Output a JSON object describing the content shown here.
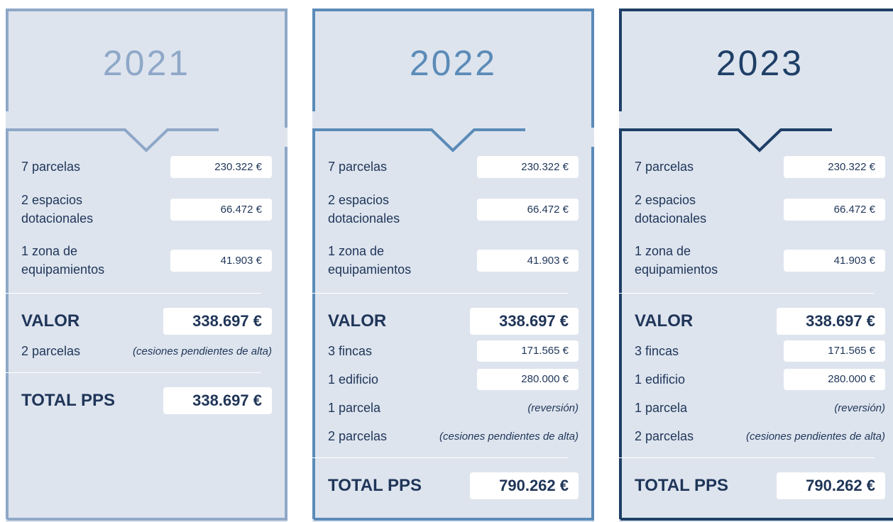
{
  "panels": [
    {
      "year": "2021",
      "color": "#8fa8c8",
      "items": [
        {
          "label": "7 parcelas",
          "value": "230.322 €"
        },
        {
          "label": [
            "2 espacios",
            "dotacionales"
          ],
          "value": "66.472 €"
        },
        {
          "label": [
            "1 zona de",
            "equipamientos"
          ],
          "value": "41.903 €"
        }
      ],
      "valor": {
        "label": "VALOR",
        "value": "338.697 €"
      },
      "extras": [
        {
          "label": "2 parcelas",
          "note": "(cesiones pendientes de alta)"
        }
      ],
      "total": {
        "label": "TOTAL PPS",
        "value": "338.697 €"
      }
    },
    {
      "year": "2022",
      "color": "#5b8bb8",
      "items": [
        {
          "label": "7 parcelas",
          "value": "230.322 €"
        },
        {
          "label": [
            "2 espacios",
            "dotacionales"
          ],
          "value": "66.472 €"
        },
        {
          "label": [
            "1 zona de",
            "equipamientos"
          ],
          "value": "41.903 €"
        }
      ],
      "valor": {
        "label": "VALOR",
        "value": "338.697 €"
      },
      "extras": [
        {
          "label": "3 fincas",
          "value": "171.565 €"
        },
        {
          "label": "1 edificio",
          "value": "280.000 €"
        },
        {
          "label": "1 parcela",
          "note": "(reversión)"
        },
        {
          "label": "2 parcelas",
          "note": "(cesiones pendientes de alta)"
        }
      ],
      "total": {
        "label": "TOTAL PPS",
        "value": "790.262 €"
      }
    },
    {
      "year": "2023",
      "color": "#1f3f66",
      "items": [
        {
          "label": "7 parcelas",
          "value": "230.322 €"
        },
        {
          "label": [
            "2 espacios",
            "dotacionales"
          ],
          "value": "66.472 €"
        },
        {
          "label": [
            "1 zona de",
            "equipamientos"
          ],
          "value": "41.903 €"
        }
      ],
      "valor": {
        "label": "VALOR",
        "value": "338.697 €"
      },
      "extras": [
        {
          "label": "3 fincas",
          "value": "171.565 €"
        },
        {
          "label": "1 edificio",
          "value": "280.000 €"
        },
        {
          "label": "1 parcela",
          "note": "(reversión)"
        },
        {
          "label": "2 parcelas",
          "note": "(cesiones pendientes de alta)"
        }
      ],
      "total": {
        "label": "TOTAL PPS",
        "value": "790.262 €"
      }
    }
  ]
}
